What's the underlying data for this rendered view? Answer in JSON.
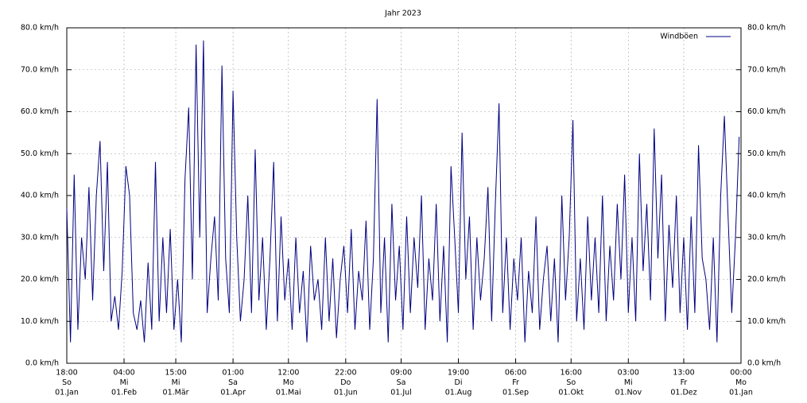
{
  "chart_data": {
    "type": "line",
    "title": "Jahr 2023",
    "legend": "top-right",
    "grid": true,
    "xlim": [
      0,
      365
    ],
    "xticks": [
      {
        "value": 0,
        "label": [
          "18:00",
          "So",
          "01.Jan"
        ]
      },
      {
        "value": 31,
        "label": [
          "04:00",
          "Mi",
          "01.Feb"
        ]
      },
      {
        "value": 59,
        "label": [
          "15:00",
          "Mi",
          "01.Mär"
        ]
      },
      {
        "value": 90,
        "label": [
          "01:00",
          "Sa",
          "01.Apr"
        ]
      },
      {
        "value": 120,
        "label": [
          "12:00",
          "Mo",
          "01.Mai"
        ]
      },
      {
        "value": 151,
        "label": [
          "22:00",
          "Do",
          "01.Jun"
        ]
      },
      {
        "value": 181,
        "label": [
          "09:00",
          "Sa",
          "01.Jul"
        ]
      },
      {
        "value": 212,
        "label": [
          "19:00",
          "Di",
          "01.Aug"
        ]
      },
      {
        "value": 243,
        "label": [
          "06:00",
          "Fr",
          "01.Sep"
        ]
      },
      {
        "value": 273,
        "label": [
          "16:00",
          "So",
          "01.Okt"
        ]
      },
      {
        "value": 304,
        "label": [
          "03:00",
          "Mi",
          "01.Nov"
        ]
      },
      {
        "value": 334,
        "label": [
          "13:00",
          "Fr",
          "01.Dez"
        ]
      },
      {
        "value": 365,
        "label": [
          "00:00",
          "Mo",
          "01.Jan"
        ]
      }
    ],
    "ylim": [
      0,
      80
    ],
    "yticks": [
      {
        "value": 0,
        "label": "0.0 km/h"
      },
      {
        "value": 10,
        "label": "10.0 km/h"
      },
      {
        "value": 20,
        "label": "20.0 km/h"
      },
      {
        "value": 30,
        "label": "30.0 km/h"
      },
      {
        "value": 40,
        "label": "40.0 km/h"
      },
      {
        "value": 50,
        "label": "50.0 km/h"
      },
      {
        "value": 60,
        "label": "60.0 km/h"
      },
      {
        "value": 70,
        "label": "70.0 km/h"
      },
      {
        "value": 80,
        "label": "80.0 km/h"
      }
    ],
    "y2lim": [
      0,
      80
    ],
    "y2ticks": [
      {
        "value": 0,
        "label": "0.0 km/h"
      },
      {
        "value": 10,
        "label": "10.0 km/h"
      },
      {
        "value": 20,
        "label": "20.0 km/h"
      },
      {
        "value": 30,
        "label": "30.0 km/h"
      },
      {
        "value": 40,
        "label": "40.0 km/h"
      },
      {
        "value": 50,
        "label": "50.0 km/h"
      },
      {
        "value": 60,
        "label": "60.0 km/h"
      },
      {
        "value": 70,
        "label": "70.0 km/h"
      },
      {
        "value": 80,
        "label": "80.0 km/h"
      }
    ],
    "x": [
      0,
      2,
      4,
      6,
      8,
      10,
      12,
      14,
      16,
      18,
      20,
      22,
      24,
      26,
      28,
      30,
      32,
      34,
      36,
      38,
      40,
      42,
      44,
      46,
      48,
      50,
      52,
      54,
      56,
      58,
      60,
      62,
      64,
      66,
      68,
      70,
      72,
      74,
      76,
      78,
      80,
      82,
      84,
      86,
      88,
      90,
      92,
      94,
      96,
      98,
      100,
      102,
      104,
      106,
      108,
      110,
      112,
      114,
      116,
      118,
      120,
      122,
      124,
      126,
      128,
      130,
      132,
      134,
      136,
      138,
      140,
      142,
      144,
      146,
      148,
      150,
      152,
      154,
      156,
      158,
      160,
      162,
      164,
      166,
      168,
      170,
      172,
      174,
      176,
      178,
      180,
      182,
      184,
      186,
      188,
      190,
      192,
      194,
      196,
      198,
      200,
      202,
      204,
      206,
      208,
      210,
      212,
      214,
      216,
      218,
      220,
      222,
      224,
      226,
      228,
      230,
      232,
      234,
      236,
      238,
      240,
      242,
      244,
      246,
      248,
      250,
      252,
      254,
      256,
      258,
      260,
      262,
      264,
      266,
      268,
      270,
      272,
      274,
      276,
      278,
      280,
      282,
      284,
      286,
      288,
      290,
      292,
      294,
      296,
      298,
      300,
      302,
      304,
      306,
      308,
      310,
      312,
      314,
      316,
      318,
      320,
      322,
      324,
      326,
      328,
      330,
      332,
      334,
      336,
      338,
      340,
      342,
      344,
      346,
      348,
      350,
      352,
      354,
      356,
      358,
      360,
      362,
      364
    ],
    "series": [
      {
        "name": "Windböen",
        "color": "#000080",
        "values": [
          37,
          5,
          45,
          8,
          30,
          20,
          42,
          15,
          40,
          53,
          22,
          48,
          10,
          16,
          8,
          22,
          47,
          40,
          12,
          8,
          15,
          5,
          24,
          8,
          48,
          10,
          30,
          12,
          32,
          8,
          20,
          5,
          44,
          61,
          20,
          76,
          30,
          77,
          12,
          25,
          35,
          15,
          71,
          25,
          12,
          65,
          30,
          10,
          20,
          40,
          12,
          51,
          15,
          30,
          8,
          25,
          48,
          10,
          35,
          15,
          25,
          8,
          30,
          12,
          22,
          5,
          28,
          15,
          20,
          8,
          30,
          10,
          25,
          6,
          20,
          28,
          12,
          32,
          8,
          22,
          15,
          34,
          8,
          25,
          63,
          12,
          30,
          5,
          38,
          15,
          28,
          8,
          35,
          12,
          30,
          18,
          40,
          8,
          25,
          15,
          38,
          10,
          28,
          5,
          47,
          30,
          12,
          55,
          20,
          35,
          8,
          30,
          15,
          25,
          42,
          10,
          38,
          62,
          12,
          30,
          8,
          25,
          15,
          30,
          5,
          22,
          12,
          35,
          8,
          20,
          28,
          10,
          25,
          5,
          40,
          15,
          30,
          58,
          10,
          25,
          8,
          35,
          15,
          30,
          12,
          40,
          10,
          28,
          15,
          38,
          20,
          45,
          12,
          30,
          10,
          50,
          22,
          38,
          15,
          56,
          25,
          45,
          10,
          33,
          18,
          40,
          12,
          30,
          8,
          35,
          12,
          52,
          25,
          20,
          8,
          30,
          5,
          40,
          59,
          35,
          12,
          30,
          54
        ]
      }
    ]
  }
}
